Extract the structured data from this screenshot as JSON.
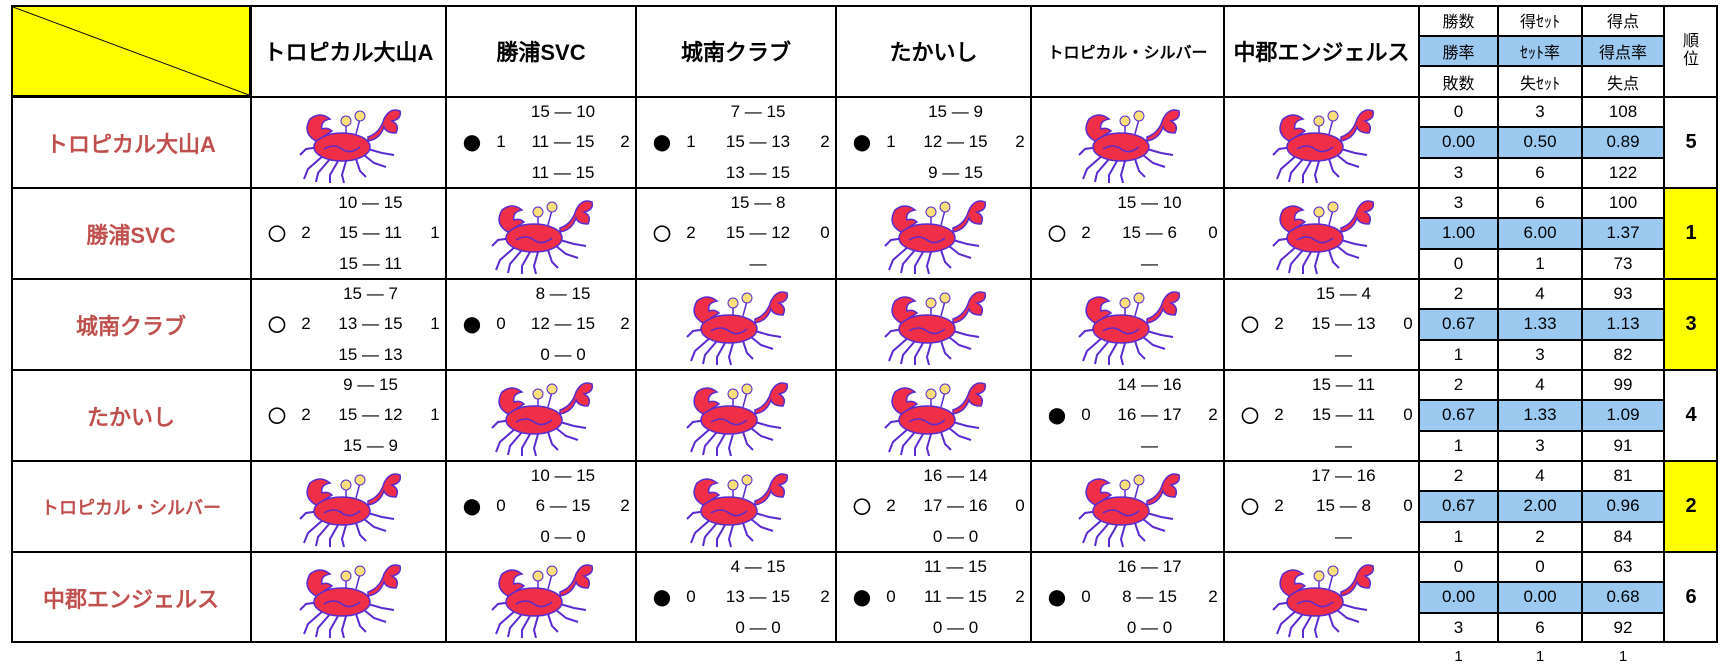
{
  "header": {
    "teams": [
      "トロピカル大山A",
      "勝浦SVC",
      "城南クラブ",
      "たかいし",
      "トロピカル・シルバー",
      "中郡エンジェルス"
    ],
    "stats": [
      [
        "勝数",
        "得ｾｯﾄ",
        "得点"
      ],
      [
        "勝率",
        "ｾｯﾄ率",
        "得点率"
      ],
      [
        "敗数",
        "失ｾｯﾄ",
        "失点"
      ]
    ],
    "rank": "順位"
  },
  "rows": [
    {
      "name": "トロピカル大山A",
      "cells": [
        null,
        {
          "symbol": "●",
          "sets_won": 1,
          "sets_lost": 2,
          "scores": [
            "15 — 10",
            "11 — 15",
            "11 — 15"
          ]
        },
        {
          "symbol": "●",
          "sets_won": 1,
          "sets_lost": 2,
          "scores": [
            "7 — 15",
            "15 — 13",
            "13 — 15"
          ]
        },
        {
          "symbol": "●",
          "sets_won": 1,
          "sets_lost": 2,
          "scores": [
            "15 — 9",
            "12 — 15",
            "9 — 15"
          ]
        },
        null,
        null
      ],
      "stats": [
        [
          0,
          3,
          108
        ],
        [
          "0.00",
          "0.50",
          "0.89"
        ],
        [
          3,
          6,
          122
        ]
      ],
      "rank": 5,
      "highlight": false
    },
    {
      "name": "勝浦SVC",
      "cells": [
        {
          "symbol": "○",
          "sets_won": 2,
          "sets_lost": 1,
          "scores": [
            "10 — 15",
            "15 — 11",
            "15 — 11"
          ]
        },
        null,
        {
          "symbol": "○",
          "sets_won": 2,
          "sets_lost": 0,
          "scores": [
            "15 — 8",
            "15 — 12",
            "—"
          ]
        },
        null,
        {
          "symbol": "○",
          "sets_won": 2,
          "sets_lost": 0,
          "scores": [
            "15 — 10",
            "15 — 6",
            "—"
          ]
        },
        null
      ],
      "stats": [
        [
          3,
          6,
          100
        ],
        [
          "1.00",
          "6.00",
          "1.37"
        ],
        [
          0,
          1,
          73
        ]
      ],
      "rank": 1,
      "highlight": true
    },
    {
      "name": "城南クラブ",
      "cells": [
        {
          "symbol": "○",
          "sets_won": 2,
          "sets_lost": 1,
          "scores": [
            "15 — 7",
            "13 — 15",
            "15 — 13"
          ]
        },
        {
          "symbol": "●",
          "sets_won": 0,
          "sets_lost": 2,
          "scores": [
            "8 — 15",
            "12 — 15",
            "0 — 0"
          ]
        },
        null,
        null,
        null,
        {
          "symbol": "○",
          "sets_won": 2,
          "sets_lost": 0,
          "scores": [
            "15 — 4",
            "15 — 13",
            "—"
          ]
        }
      ],
      "stats": [
        [
          2,
          4,
          93
        ],
        [
          "0.67",
          "1.33",
          "1.13"
        ],
        [
          1,
          3,
          82
        ]
      ],
      "rank": 3,
      "highlight": true
    },
    {
      "name": "たかいし",
      "cells": [
        {
          "symbol": "○",
          "sets_won": 2,
          "sets_lost": 1,
          "scores": [
            "9 — 15",
            "15 — 12",
            "15 — 9"
          ]
        },
        null,
        null,
        null,
        {
          "symbol": "●",
          "sets_won": 0,
          "sets_lost": 2,
          "scores": [
            "14 — 16",
            "16 — 17",
            "—"
          ]
        },
        {
          "symbol": "○",
          "sets_won": 2,
          "sets_lost": 0,
          "scores": [
            "15 — 11",
            "15 — 11",
            "—"
          ]
        }
      ],
      "stats": [
        [
          2,
          4,
          99
        ],
        [
          "0.67",
          "1.33",
          "1.09"
        ],
        [
          1,
          3,
          91
        ]
      ],
      "rank": 4,
      "highlight": false
    },
    {
      "name": "トロピカル・シルバー",
      "cells": [
        null,
        {
          "symbol": "●",
          "sets_won": 0,
          "sets_lost": 2,
          "scores": [
            "10 — 15",
            "6 — 15",
            "0 — 0"
          ]
        },
        null,
        {
          "symbol": "○",
          "sets_won": 2,
          "sets_lost": 0,
          "scores": [
            "16 — 14",
            "17 — 16",
            "0 — 0"
          ]
        },
        null,
        {
          "symbol": "○",
          "sets_won": 2,
          "sets_lost": 0,
          "scores": [
            "17 — 16",
            "15 — 8",
            "—"
          ]
        }
      ],
      "stats": [
        [
          2,
          4,
          81
        ],
        [
          "0.67",
          "2.00",
          "0.96"
        ],
        [
          1,
          2,
          84
        ]
      ],
      "rank": 2,
      "highlight": true
    },
    {
      "name": "中郡エンジェルス",
      "cells": [
        null,
        null,
        {
          "symbol": "●",
          "sets_won": 0,
          "sets_lost": 2,
          "scores": [
            "4 — 15",
            "13 — 15",
            "0 — 0"
          ]
        },
        {
          "symbol": "●",
          "sets_won": 0,
          "sets_lost": 2,
          "scores": [
            "11 — 15",
            "11 — 15",
            "0 — 0"
          ]
        },
        {
          "symbol": "●",
          "sets_won": 0,
          "sets_lost": 2,
          "scores": [
            "16 — 17",
            "8 — 15",
            "0 — 0"
          ]
        },
        null
      ],
      "stats": [
        [
          0,
          0,
          63
        ],
        [
          "0.00",
          "0.00",
          "0.68"
        ],
        [
          3,
          6,
          92
        ]
      ],
      "rank": 6,
      "highlight": false
    }
  ],
  "footer": [
    1,
    1,
    1
  ]
}
